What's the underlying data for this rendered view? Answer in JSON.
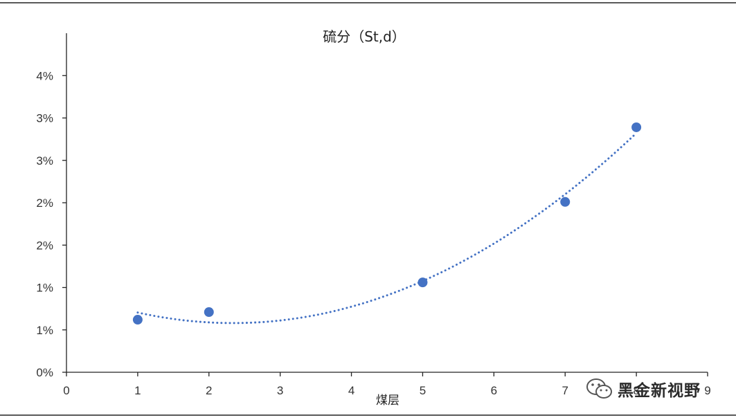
{
  "chart_data": {
    "type": "scatter",
    "title": "硫分（St,d）",
    "xlabel": "煤层",
    "ylabel": "",
    "xlim": [
      0,
      9
    ],
    "ylim": [
      0,
      0.04
    ],
    "x_ticks": [
      {
        "value": 0,
        "label": "0"
      },
      {
        "value": 1,
        "label": "1"
      },
      {
        "value": 2,
        "label": "2"
      },
      {
        "value": 3,
        "label": "3"
      },
      {
        "value": 4,
        "label": "4"
      },
      {
        "value": 5,
        "label": "5"
      },
      {
        "value": 6,
        "label": "6"
      },
      {
        "value": 7,
        "label": "7"
      },
      {
        "value": 8,
        "label": "8"
      },
      {
        "value": 9,
        "label": "9"
      }
    ],
    "y_ticks": [
      {
        "value": 0.0,
        "label": "0%"
      },
      {
        "value": 0.005,
        "label": "1%"
      },
      {
        "value": 0.01,
        "label": "1%"
      },
      {
        "value": 0.015,
        "label": "2%"
      },
      {
        "value": 0.02,
        "label": "2%"
      },
      {
        "value": 0.025,
        "label": "3%"
      },
      {
        "value": 0.03,
        "label": "3%"
      },
      {
        "value": 0.035,
        "label": "4%"
      }
    ],
    "grid": false,
    "legend": "none",
    "series": [
      {
        "color": "#4472c4",
        "trendline": "dotted polynomial",
        "points": [
          {
            "x": 1,
            "y": 0.0062
          },
          {
            "x": 2,
            "y": 0.0071
          },
          {
            "x": 5,
            "y": 0.0106
          },
          {
            "x": 7,
            "y": 0.0201
          },
          {
            "x": 8,
            "y": 0.0289
          }
        ]
      }
    ]
  },
  "watermark": {
    "text": "黑金新视野",
    "icon": "wechat-icon"
  }
}
